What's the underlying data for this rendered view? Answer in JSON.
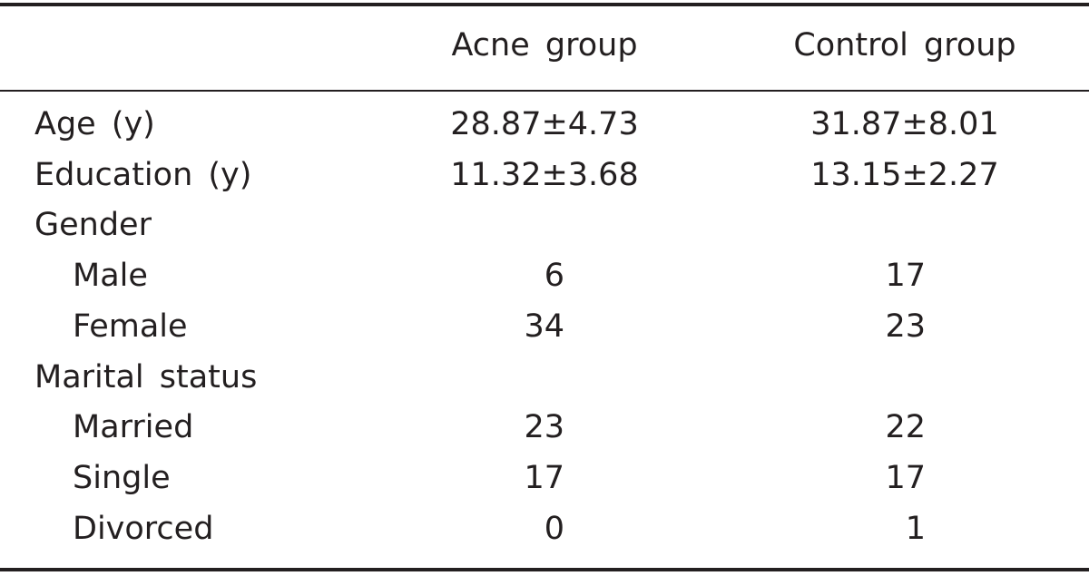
{
  "table": {
    "columns": [
      "Acne group",
      "Control group"
    ],
    "rows": [
      {
        "label": "Age (y)",
        "values": [
          "28.87±4.73",
          "31.87±8.01"
        ]
      },
      {
        "label": "Education (y)",
        "values": [
          "11.32±3.68",
          "13.15±2.27"
        ]
      },
      {
        "label": "Gender"
      },
      {
        "label": "Male",
        "indent": true,
        "values": [
          6,
          17
        ]
      },
      {
        "label": "Female",
        "indent": true,
        "values": [
          34,
          23
        ]
      },
      {
        "label": "Marital status"
      },
      {
        "label": "Married",
        "indent": true,
        "values": [
          23,
          22
        ]
      },
      {
        "label": "Single",
        "indent": true,
        "values": [
          17,
          17
        ]
      },
      {
        "label": "Divorced",
        "indent": true,
        "values": [
          0,
          1
        ]
      }
    ]
  }
}
